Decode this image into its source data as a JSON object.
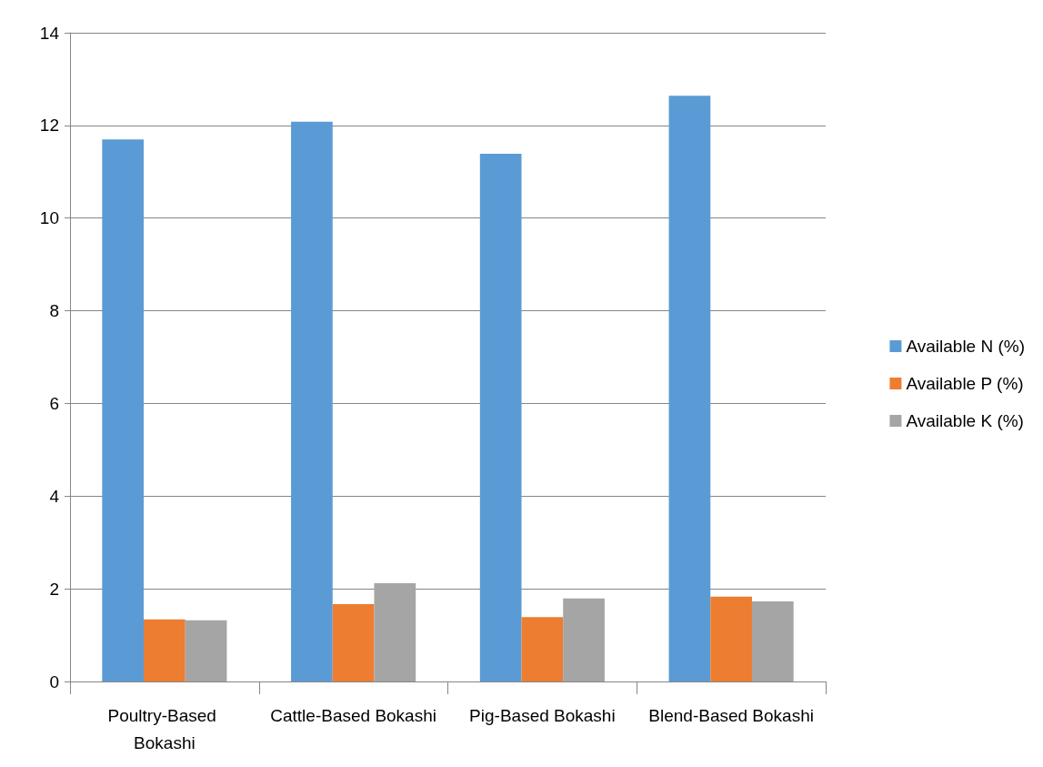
{
  "chart_data": {
    "type": "bar",
    "categories": [
      "Poultry-Based Bokashi",
      "Cattle-Based Bokashi",
      "Pig-Based Bokashi",
      "Blend-Based Bokashi"
    ],
    "series": [
      {
        "name": "Available N (%)",
        "color": "#5b9bd5",
        "values": [
          11.7,
          12.08,
          11.39,
          12.64
        ]
      },
      {
        "name": "Available P (%)",
        "color": "#ed7d31",
        "values": [
          1.34,
          1.67,
          1.39,
          1.83
        ]
      },
      {
        "name": "Available K (%)",
        "color": "#a5a5a5",
        "values": [
          1.32,
          2.12,
          1.79,
          1.73
        ]
      }
    ],
    "ylim": [
      0,
      14
    ],
    "yticks": [
      0,
      2,
      4,
      6,
      8,
      10,
      12,
      14
    ],
    "grid": "y",
    "legend": "right"
  }
}
